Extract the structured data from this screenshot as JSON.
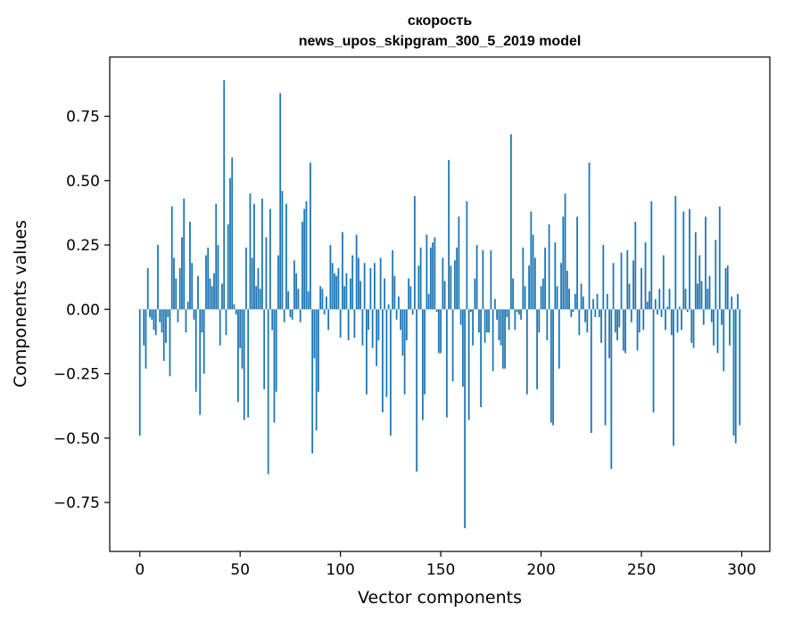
{
  "chart_data": {
    "type": "bar",
    "title": "скорость",
    "subtitle": "news_upos_skipgram_300_5_2019 model",
    "xlabel": "Vector components",
    "ylabel": "Components values",
    "xlim": [
      -15,
      314
    ],
    "ylim": [
      -0.94,
      0.98
    ],
    "xticks": [
      0,
      50,
      100,
      150,
      200,
      250,
      300
    ],
    "yticks": [
      -0.75,
      -0.5,
      -0.25,
      0.0,
      0.25,
      0.5,
      0.75
    ],
    "xtick_labels": [
      "0",
      "50",
      "100",
      "150",
      "200",
      "250",
      "300"
    ],
    "ytick_labels": [
      "−0.75",
      "−0.50",
      "−0.25",
      "0.00",
      "0.25",
      "0.50",
      "0.75"
    ],
    "grid": false,
    "color": "#1f77b4",
    "values": [
      -0.49,
      0.0,
      -0.14,
      -0.23,
      0.16,
      -0.03,
      -0.04,
      -0.08,
      -0.1,
      0.25,
      -0.05,
      -0.09,
      -0.2,
      -0.13,
      -0.03,
      -0.26,
      0.4,
      0.2,
      0.12,
      -0.05,
      0.16,
      0.28,
      0.43,
      -0.09,
      0.03,
      0.34,
      0.18,
      -0.04,
      -0.32,
      0.13,
      -0.41,
      -0.09,
      -0.25,
      0.21,
      0.24,
      0.12,
      0.09,
      0.14,
      0.41,
      0.25,
      -0.14,
      0.1,
      0.89,
      -0.1,
      0.33,
      0.51,
      0.59,
      0.02,
      -0.02,
      -0.36,
      -0.15,
      -0.23,
      -0.43,
      0.24,
      -0.42,
      0.45,
      0.2,
      0.41,
      0.09,
      0.16,
      0.08,
      0.43,
      -0.31,
      0.28,
      -0.64,
      0.39,
      -0.08,
      -0.44,
      -0.32,
      0.21,
      0.84,
      0.46,
      -0.05,
      0.41,
      0.07,
      -0.03,
      -0.04,
      0.19,
      0.14,
      0.08,
      -0.05,
      0.34,
      0.39,
      0.42,
      0.07,
      0.57,
      -0.56,
      -0.19,
      -0.47,
      -0.32,
      0.09,
      0.08,
      -0.02,
      0.05,
      -0.08,
      0.25,
      0.18,
      0.14,
      0.13,
      0.16,
      -0.11,
      0.3,
      0.09,
      0.14,
      -0.12,
      0.12,
      0.21,
      -0.11,
      0.29,
      0.2,
      0.11,
      -0.14,
      0.18,
      -0.33,
      -0.08,
      0.16,
      -0.15,
      0.18,
      -0.22,
      -0.12,
      0.2,
      -0.4,
      0.12,
      -0.34,
      0.02,
      -0.49,
      0.23,
      0.13,
      -0.04,
      0.05,
      -0.08,
      -0.18,
      -0.33,
      -0.12,
      0.12,
      0.09,
      -0.02,
      0.44,
      -0.63,
      0.17,
      0.24,
      -0.43,
      -0.33,
      0.29,
      0.06,
      0.24,
      0.26,
      0.28,
      -0.01,
      -0.17,
      -0.17,
      0.2,
      0.11,
      -0.42,
      0.58,
      0.17,
      -0.28,
      0.19,
      0.24,
      0.36,
      -0.06,
      -0.3,
      -0.85,
      0.42,
      -0.43,
      -0.01,
      -0.14,
      0.12,
      0.25,
      -0.09,
      -0.38,
      0.23,
      -0.13,
      -0.09,
      -0.09,
      0.23,
      -0.24,
      0.04,
      -0.04,
      -0.12,
      -0.14,
      -0.23,
      -0.23,
      -0.03,
      -0.08,
      0.68,
      0.12,
      -0.08,
      -0.01,
      -0.02,
      -0.04,
      0.24,
      0.09,
      -0.33,
      0.17,
      0.38,
      0.29,
      0.2,
      -0.31,
      -0.09,
      0.09,
      0.12,
      0.24,
      -0.12,
      0.33,
      -0.44,
      -0.45,
      0.26,
      0.09,
      -0.23,
      0.18,
      0.36,
      0.45,
      0.15,
      0.08,
      -0.03,
      -0.01,
      0.06,
      0.36,
      -0.1,
      0.1,
      0.05,
      -0.05,
      -0.09,
      0.57,
      -0.48,
      0.04,
      -0.03,
      0.06,
      -0.03,
      -0.13,
      0.25,
      -0.45,
      0.06,
      -0.19,
      -0.62,
      0.18,
      -0.09,
      -0.12,
      -0.07,
      0.22,
      -0.16,
      -0.17,
      0.23,
      0.1,
      -0.05,
      0.19,
      0.34,
      -0.16,
      -0.09,
      0.16,
      -0.08,
      0.26,
      0.03,
      0.07,
      0.42,
      -0.4,
      0.04,
      -0.02,
      0.08,
      -0.03,
      0.21,
      -0.08,
      0.01,
      0.08,
      -0.1,
      -0.53,
      0.44,
      -0.09,
      0.01,
      -0.08,
      0.38,
      0.08,
      -0.01,
      0.39,
      -0.13,
      -0.15,
      0.3,
      0.1,
      0.21,
      0.11,
      -0.06,
      0.36,
      0.08,
      0.13,
      -0.05,
      -0.14,
      0.27,
      -0.17,
      0.4,
      -0.06,
      -0.24,
      0.16,
      0.17,
      -0.14,
      0.05,
      -0.49,
      -0.52,
      0.06,
      -0.45
    ]
  }
}
